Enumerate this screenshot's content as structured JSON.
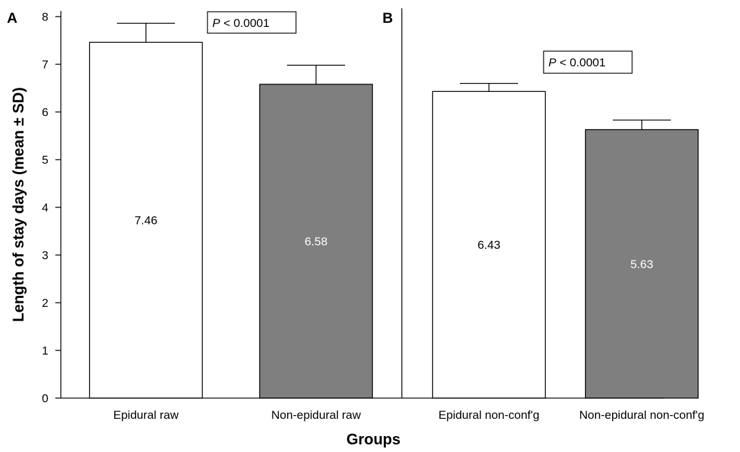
{
  "chart_data": {
    "type": "bar",
    "xlabel": "Groups",
    "ylabel": "Length of stay days (mean ± SD)",
    "ylim": [
      0,
      8
    ],
    "yticks": [
      "0",
      "1",
      "2",
      "3",
      "4",
      "5",
      "6",
      "7",
      "8"
    ],
    "grid": false,
    "panels": [
      {
        "label": "A",
        "pvalue_prefix": "P",
        "pvalue_rest": " < 0.0001"
      },
      {
        "label": "B",
        "pvalue_prefix": "P",
        "pvalue_rest": " < 0.0001"
      }
    ],
    "categories": [
      "Epidural raw",
      "Non-epidural raw",
      "Epidural non-conf'g",
      "Non-epidural non-conf'g"
    ],
    "values": [
      7.46,
      6.58,
      6.43,
      5.63
    ],
    "sd": [
      0.4,
      0.4,
      0.17,
      0.2
    ],
    "value_labels": [
      "7.46",
      "6.58",
      "6.43",
      "5.63"
    ],
    "bar_colors": [
      "#ffffff",
      "#7f7f7f",
      "#ffffff",
      "#7f7f7f"
    ],
    "label_colors": [
      "#000000",
      "#ffffff",
      "#000000",
      "#ffffff"
    ]
  }
}
